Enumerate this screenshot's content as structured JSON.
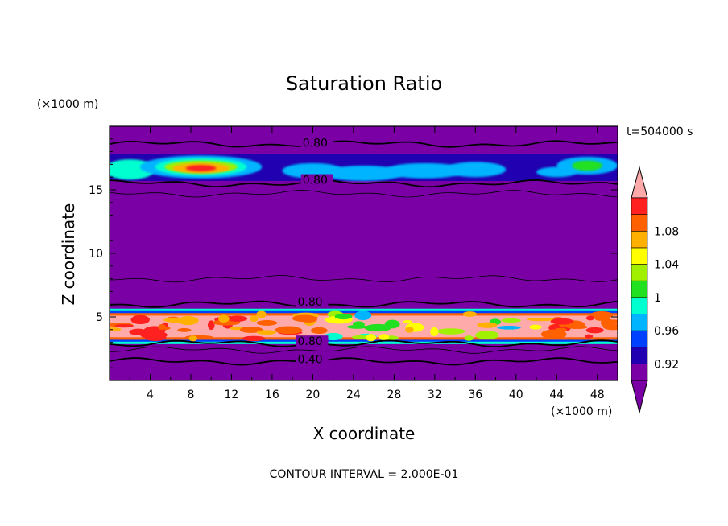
{
  "chart_data": {
    "type": "heatmap",
    "title": "Saturation Ratio",
    "xlabel": "X coordinate",
    "ylabel": "Z coordinate",
    "x_unit": "(×1000 m)",
    "y_unit": "(×1000 m)",
    "time_label": "t=504000 s",
    "footer": "CONTOUR INTERVAL = 2.000E-01",
    "xlim": [
      0,
      50
    ],
    "ylim": [
      0,
      20
    ],
    "x_ticks": [
      "4",
      "8",
      "12",
      "16",
      "20",
      "24",
      "28",
      "32",
      "36",
      "40",
      "44",
      "48"
    ],
    "y_ticks": [
      "5",
      "10",
      "15"
    ],
    "background_color": "#7a00a6",
    "colorbar": {
      "labels": [
        "0.92",
        "0.96",
        "1",
        "1.04",
        "1.08"
      ],
      "bins": [
        {
          "color": "#7a00a6"
        },
        {
          "color": "#2000b0"
        },
        {
          "color": "#0040ff"
        },
        {
          "color": "#00b4ff"
        },
        {
          "color": "#00ffd0"
        },
        {
          "color": "#20e020"
        },
        {
          "color": "#a0f000"
        },
        {
          "color": "#ffff00"
        },
        {
          "color": "#ffb000"
        },
        {
          "color": "#ff6000"
        },
        {
          "color": "#ff2020"
        }
      ],
      "top_color": "#ffaaaa",
      "bottom_color": "#7a00a6"
    },
    "contour_labels": [
      {
        "text": "0.80",
        "x": 19,
        "z": 18.5
      },
      {
        "text": "0.80",
        "x": 19,
        "z": 15.6
      },
      {
        "text": "0.80",
        "x": 18.5,
        "z": 6.0
      },
      {
        "text": "0.80",
        "x": 18.5,
        "z": 2.9
      },
      {
        "text": "0.40",
        "x": 18.5,
        "z": 1.5
      }
    ],
    "contour_lines": [
      {
        "z": 18.6,
        "level": "0.80",
        "weight": "bold"
      },
      {
        "z": 15.5,
        "level": "0.80",
        "weight": "bold"
      },
      {
        "z": 14.7,
        "level": "",
        "weight": "thin"
      },
      {
        "z": 8.0,
        "level": "",
        "weight": "thin"
      },
      {
        "z": 6.0,
        "level": "0.80",
        "weight": "bold"
      },
      {
        "z": 2.9,
        "level": "0.80",
        "weight": "bold"
      },
      {
        "z": 2.4,
        "level": "",
        "weight": "thin"
      },
      {
        "z": 1.5,
        "level": "0.40",
        "weight": "bold"
      }
    ]
  }
}
